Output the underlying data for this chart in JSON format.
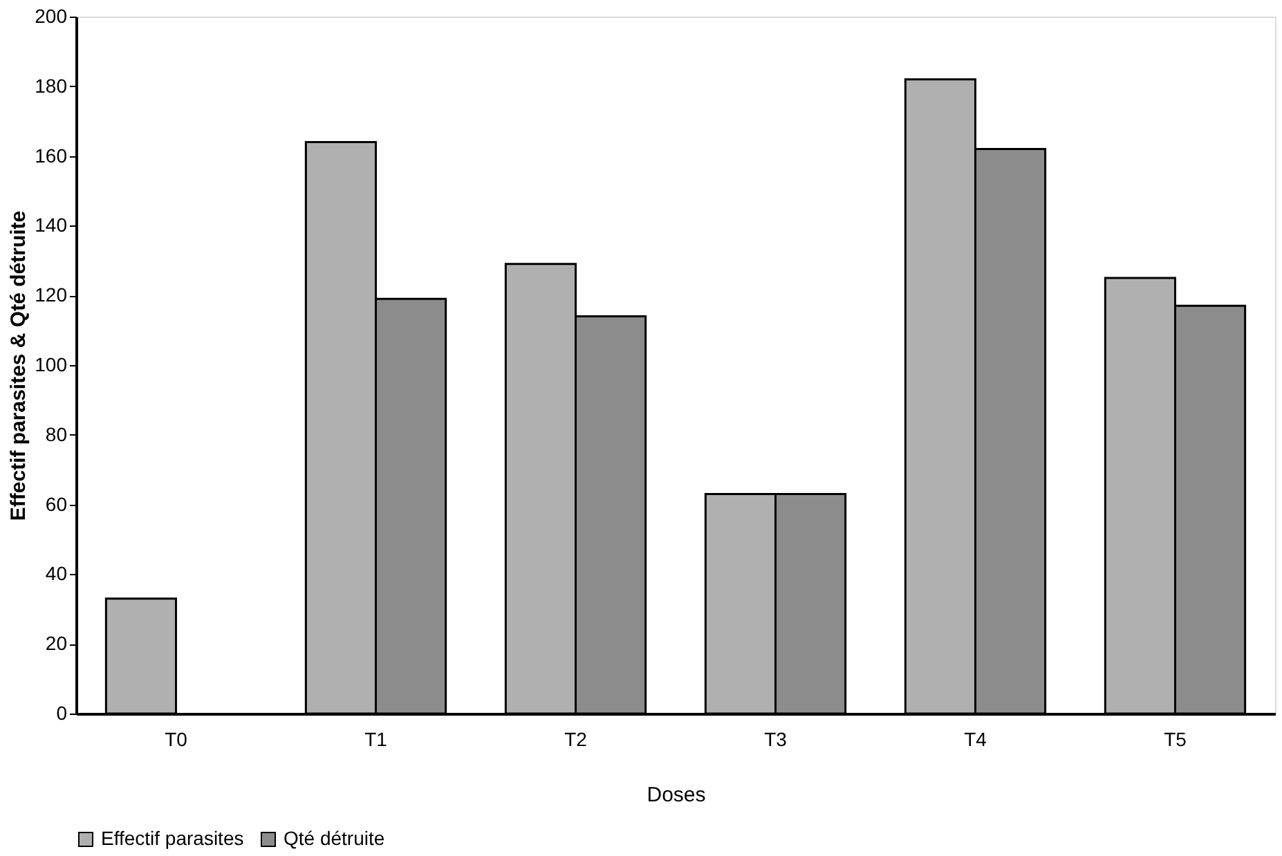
{
  "chart_data": {
    "type": "bar",
    "xlabel": "Doses",
    "ylabel": "Effectif parasites & Qté détruite",
    "categories": [
      "T0",
      "T1",
      "T2",
      "T3",
      "T4",
      "T5"
    ],
    "series": [
      {
        "name": "Effectif parasites",
        "color": "#b0b0b0",
        "values": [
          33,
          164,
          129,
          63,
          182,
          125
        ]
      },
      {
        "name": "Qté détruite",
        "color": "#8c8c8c",
        "values": [
          null,
          119,
          114,
          63,
          162,
          117
        ]
      }
    ],
    "ylim": [
      0,
      200
    ],
    "yticks": [
      0,
      20,
      40,
      60,
      80,
      100,
      120,
      140,
      160,
      180,
      200
    ],
    "grid": false,
    "legend": "bottom"
  }
}
